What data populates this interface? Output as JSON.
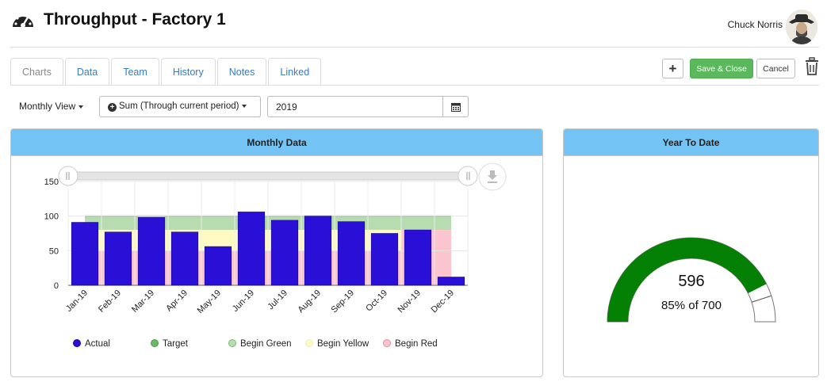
{
  "header": {
    "title": "Throughput - Factory 1",
    "user_name": "Chuck Norris"
  },
  "tabs": [
    {
      "label": "Charts",
      "active": true
    },
    {
      "label": "Data",
      "active": false
    },
    {
      "label": "Team",
      "active": false
    },
    {
      "label": "History",
      "active": false
    },
    {
      "label": "Notes",
      "active": false
    },
    {
      "label": "Linked",
      "active": false
    }
  ],
  "actions": {
    "add_label": "+",
    "save_label": "Save & Close",
    "cancel_label": "Cancel"
  },
  "toolbar": {
    "view_label": "Monthly View",
    "aggregate_label": "Sum (Through current period)",
    "year_value": "2019"
  },
  "monthly_panel": {
    "title": "Monthly Data"
  },
  "ytd_panel": {
    "title": "Year To Date",
    "value_text": "596",
    "percent_text": "85% of 700"
  },
  "colors": {
    "header_bar": "#74c3f5",
    "actual": "#2a0fd6",
    "target": "#4a9e4a",
    "band_green": "#b6dcb0",
    "band_yellow": "#fdfbc3",
    "band_red": "#fbc5cf",
    "gauge_fill": "#048004",
    "save_button": "#5cb85c"
  },
  "chart_data": [
    {
      "type": "bar",
      "categories": [
        "Jan-19",
        "Feb-19",
        "Mar-19",
        "Apr-19",
        "May-19",
        "Jun-19",
        "Jul-19",
        "Aug-19",
        "Sep-19",
        "Oct-19",
        "Nov-19",
        "Dec-19"
      ],
      "series": [
        {
          "name": "Actual",
          "values": [
            91,
            77,
            98,
            77,
            56,
            106,
            94,
            100,
            92,
            75,
            80,
            12
          ]
        },
        {
          "name": "Target",
          "values": [
            100,
            100,
            100,
            100,
            100,
            100,
            100,
            100,
            100,
            100,
            100,
            null
          ]
        },
        {
          "name": "Begin Green",
          "values": [
            80,
            80,
            80,
            80,
            80,
            80,
            80,
            80,
            80,
            80,
            80,
            null
          ]
        },
        {
          "name": "Begin Yellow",
          "values": [
            50,
            50,
            50,
            50,
            50,
            50,
            50,
            50,
            50,
            50,
            80,
            null
          ]
        },
        {
          "name": "Begin Red",
          "values": [
            0,
            0,
            0,
            0,
            0,
            0,
            0,
            0,
            0,
            0,
            0,
            null
          ]
        }
      ],
      "ylim": [
        0,
        150
      ],
      "yticks": [
        0,
        50,
        100,
        150
      ],
      "grid": true,
      "legend": "bottom"
    },
    {
      "type": "gauge",
      "value": 596,
      "max": 700,
      "percent": 85
    }
  ]
}
